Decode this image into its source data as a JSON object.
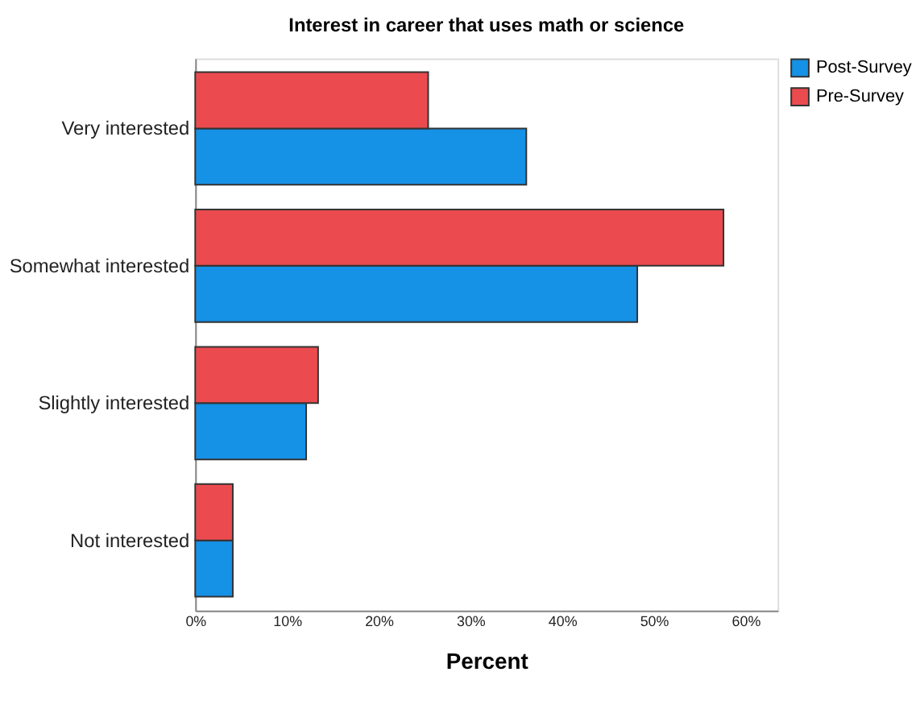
{
  "chart_data": {
    "type": "bar",
    "orientation": "horizontal",
    "title": "Interest in career that uses math or science",
    "xlabel": "Percent",
    "categories": [
      "Very interested",
      "Somewhat interested",
      "Slightly interested",
      "Not interested"
    ],
    "series": [
      {
        "name": "Post-Survey",
        "color": "#1591e6",
        "values": [
          36.1,
          48.2,
          12.1,
          4.1
        ]
      },
      {
        "name": "Pre-Survey",
        "color": "#eb4b4f",
        "values": [
          25.4,
          57.6,
          13.4,
          4.1
        ]
      }
    ],
    "xlim": [
      0,
      63.5
    ],
    "xticks": [
      {
        "value": 0,
        "label": "0%"
      },
      {
        "value": 10,
        "label": "10%"
      },
      {
        "value": 20,
        "label": "20%"
      },
      {
        "value": 30,
        "label": "30%"
      },
      {
        "value": 40,
        "label": "40%"
      },
      {
        "value": 50,
        "label": "50%"
      },
      {
        "value": 60,
        "label": "60%"
      }
    ],
    "grid": false,
    "legend": "top right"
  }
}
